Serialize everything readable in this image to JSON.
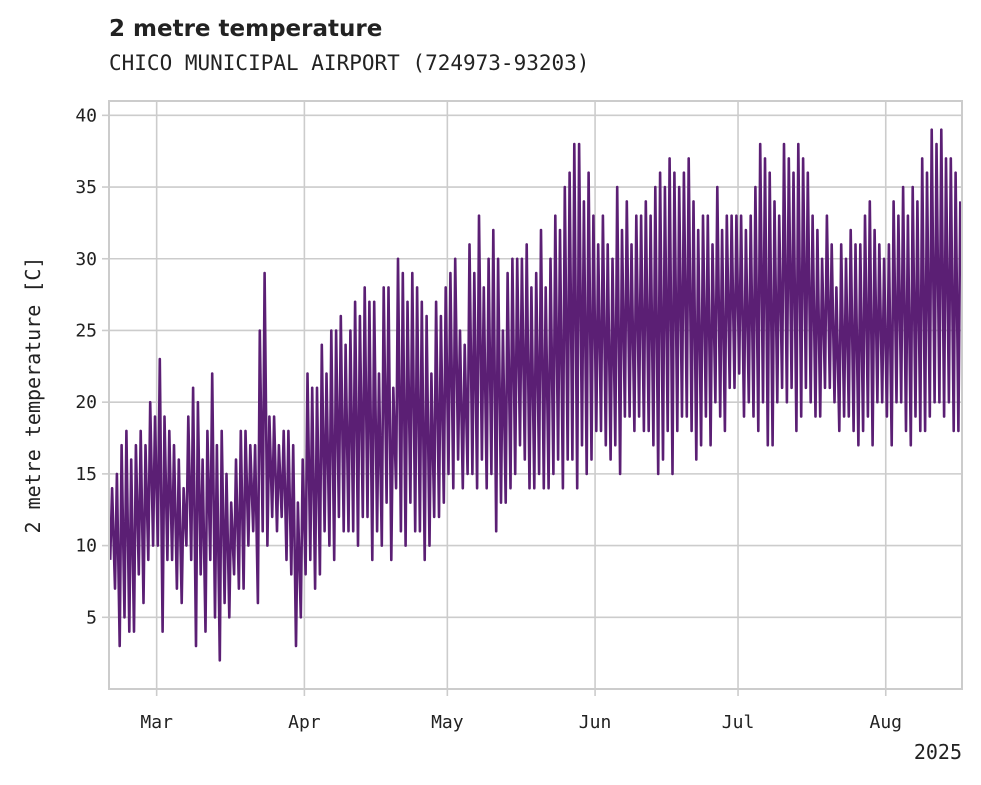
{
  "chart_data": {
    "type": "line",
    "title": "2 metre temperature",
    "subtitle": "CHICO MUNICIPAL AIRPORT (724973-93203)",
    "xlabel": "",
    "ylabel": "2 metre temperature [C]",
    "x_year_label": "2025",
    "x_range": [
      "2025-02-19",
      "2025-08-17"
    ],
    "ylim": [
      0,
      41
    ],
    "x_ticks": [
      {
        "label": "Mar",
        "date": "2025-03-01"
      },
      {
        "label": "Apr",
        "date": "2025-04-01"
      },
      {
        "label": "May",
        "date": "2025-05-01"
      },
      {
        "label": "Jun",
        "date": "2025-06-01"
      },
      {
        "label": "Jul",
        "date": "2025-07-01"
      },
      {
        "label": "Aug",
        "date": "2025-08-01"
      }
    ],
    "y_ticks": [
      5,
      10,
      15,
      20,
      25,
      30,
      35,
      40
    ],
    "grid": true,
    "line_color": "#5b1f74",
    "series": [
      {
        "x": [
          "2025-02-19",
          "2025-02-20",
          "2025-02-21",
          "2025-02-22",
          "2025-02-23",
          "2025-02-24",
          "2025-02-25",
          "2025-02-26",
          "2025-02-27",
          "2025-02-28",
          "2025-03-01",
          "2025-03-02",
          "2025-03-03",
          "2025-03-04",
          "2025-03-05",
          "2025-03-06",
          "2025-03-07",
          "2025-03-08",
          "2025-03-09",
          "2025-03-10",
          "2025-03-11",
          "2025-03-12",
          "2025-03-13",
          "2025-03-14",
          "2025-03-15",
          "2025-03-16",
          "2025-03-17",
          "2025-03-18",
          "2025-03-19",
          "2025-03-20",
          "2025-03-21",
          "2025-03-22",
          "2025-03-23",
          "2025-03-24",
          "2025-03-25",
          "2025-03-26",
          "2025-03-27",
          "2025-03-28",
          "2025-03-29",
          "2025-03-30",
          "2025-03-31",
          "2025-04-01",
          "2025-04-02",
          "2025-04-03",
          "2025-04-04",
          "2025-04-05",
          "2025-04-06",
          "2025-04-07",
          "2025-04-08",
          "2025-04-09",
          "2025-04-10",
          "2025-04-11",
          "2025-04-12",
          "2025-04-13",
          "2025-04-14",
          "2025-04-15",
          "2025-04-16",
          "2025-04-17",
          "2025-04-18",
          "2025-04-19",
          "2025-04-20",
          "2025-04-21",
          "2025-04-22",
          "2025-04-23",
          "2025-04-24",
          "2025-04-25",
          "2025-04-26",
          "2025-04-27",
          "2025-04-28",
          "2025-04-29",
          "2025-04-30",
          "2025-05-01",
          "2025-05-02",
          "2025-05-03",
          "2025-05-04",
          "2025-05-05",
          "2025-05-06",
          "2025-05-07",
          "2025-05-08",
          "2025-05-09",
          "2025-05-10",
          "2025-05-11",
          "2025-05-12",
          "2025-05-13",
          "2025-05-14",
          "2025-05-15",
          "2025-05-16",
          "2025-05-17",
          "2025-05-18",
          "2025-05-19",
          "2025-05-20",
          "2025-05-21",
          "2025-05-22",
          "2025-05-23",
          "2025-05-24",
          "2025-05-25",
          "2025-05-26",
          "2025-05-27",
          "2025-05-28",
          "2025-05-29",
          "2025-05-30",
          "2025-05-31",
          "2025-06-01",
          "2025-06-02",
          "2025-06-03",
          "2025-06-04",
          "2025-06-05",
          "2025-06-06",
          "2025-06-07",
          "2025-06-08",
          "2025-06-09",
          "2025-06-10",
          "2025-06-11",
          "2025-06-12",
          "2025-06-13",
          "2025-06-14",
          "2025-06-15",
          "2025-06-16",
          "2025-06-17",
          "2025-06-18",
          "2025-06-19",
          "2025-06-20",
          "2025-06-21",
          "2025-06-22",
          "2025-06-23",
          "2025-06-24",
          "2025-06-25",
          "2025-06-26",
          "2025-06-27",
          "2025-06-28",
          "2025-06-29",
          "2025-06-30",
          "2025-07-01",
          "2025-07-02",
          "2025-07-03",
          "2025-07-04",
          "2025-07-05",
          "2025-07-06",
          "2025-07-07",
          "2025-07-08",
          "2025-07-09",
          "2025-07-10",
          "2025-07-11",
          "2025-07-12",
          "2025-07-13",
          "2025-07-14",
          "2025-07-15",
          "2025-07-16",
          "2025-07-17",
          "2025-07-18",
          "2025-07-19",
          "2025-07-20",
          "2025-07-21",
          "2025-07-22",
          "2025-07-23",
          "2025-07-24",
          "2025-07-25",
          "2025-07-26",
          "2025-07-27",
          "2025-07-28",
          "2025-07-29",
          "2025-07-30",
          "2025-07-31",
          "2025-08-01",
          "2025-08-02",
          "2025-08-03",
          "2025-08-04",
          "2025-08-05",
          "2025-08-06",
          "2025-08-07",
          "2025-08-08",
          "2025-08-09",
          "2025-08-10",
          "2025-08-11",
          "2025-08-12",
          "2025-08-13",
          "2025-08-14",
          "2025-08-15",
          "2025-08-16"
        ],
        "daily_min": [
          9,
          7,
          3,
          5,
          4,
          4,
          8,
          6,
          9,
          10,
          10,
          4,
          9,
          9,
          7,
          6,
          10,
          9,
          3,
          8,
          4,
          9,
          5,
          2,
          6,
          5,
          8,
          7,
          7,
          10,
          11,
          6,
          11,
          10,
          12,
          11,
          12,
          9,
          8,
          3,
          5,
          8,
          9,
          7,
          8,
          11,
          10,
          9,
          12,
          11,
          11,
          11,
          10,
          12,
          12,
          9,
          11,
          10,
          13,
          9,
          14,
          11,
          10,
          13,
          11,
          11,
          9,
          10,
          12,
          12,
          13,
          15,
          14,
          16,
          14,
          15,
          15,
          14,
          16,
          14,
          15,
          11,
          13,
          13,
          14,
          15,
          17,
          16,
          14,
          14,
          15,
          14,
          14,
          15,
          16,
          14,
          16,
          16,
          14,
          17,
          15,
          16,
          18,
          18,
          17,
          16,
          17,
          15,
          19,
          19,
          18,
          19,
          18,
          18,
          17,
          15,
          16,
          18,
          15,
          18,
          19,
          19,
          18,
          16,
          17,
          19,
          17,
          20,
          19,
          18,
          21,
          21,
          22,
          19,
          20,
          19,
          18,
          20,
          17,
          17,
          20,
          21,
          20,
          21,
          18,
          19,
          21,
          20,
          19,
          19,
          21,
          21,
          20,
          18,
          19,
          19,
          18,
          17,
          18,
          19,
          17,
          20,
          20,
          19,
          17,
          20,
          20,
          18,
          17,
          19,
          18,
          18,
          19,
          20,
          20,
          19,
          20,
          18,
          18
        ],
        "daily_max": [
          14,
          15,
          17,
          18,
          16,
          17,
          18,
          17,
          20,
          19,
          23,
          19,
          18,
          17,
          16,
          14,
          19,
          21,
          20,
          16,
          18,
          22,
          17,
          18,
          15,
          13,
          16,
          18,
          18,
          17,
          17,
          25,
          29,
          19,
          19,
          17,
          18,
          18,
          17,
          13,
          16,
          22,
          21,
          21,
          24,
          22,
          25,
          25,
          26,
          24,
          25,
          27,
          26,
          28,
          27,
          27,
          22,
          28,
          28,
          21,
          30,
          29,
          27,
          29,
          28,
          27,
          26,
          22,
          27,
          26,
          28,
          29,
          30,
          25,
          24,
          31,
          29,
          33,
          28,
          30,
          32,
          30,
          25,
          29,
          30,
          30,
          30,
          31,
          28,
          29,
          32,
          28,
          30,
          33,
          32,
          35,
          36,
          38,
          38,
          34,
          36,
          33,
          31,
          33,
          31,
          30,
          35,
          32,
          34,
          31,
          33,
          33,
          34,
          33,
          35,
          36,
          35,
          37,
          36,
          35,
          36,
          37,
          34,
          32,
          33,
          33,
          31,
          35,
          32,
          33,
          33,
          33,
          33,
          32,
          33,
          35,
          38,
          37,
          36,
          34,
          33,
          38,
          37,
          36,
          38,
          37,
          36,
          33,
          32,
          30,
          33,
          31,
          28,
          31,
          30,
          32,
          31,
          31,
          33,
          34,
          32,
          31,
          30,
          31,
          34,
          33,
          35,
          33,
          35,
          34,
          37,
          36,
          39,
          38,
          39,
          37,
          37,
          36,
          34
        ]
      }
    ]
  }
}
